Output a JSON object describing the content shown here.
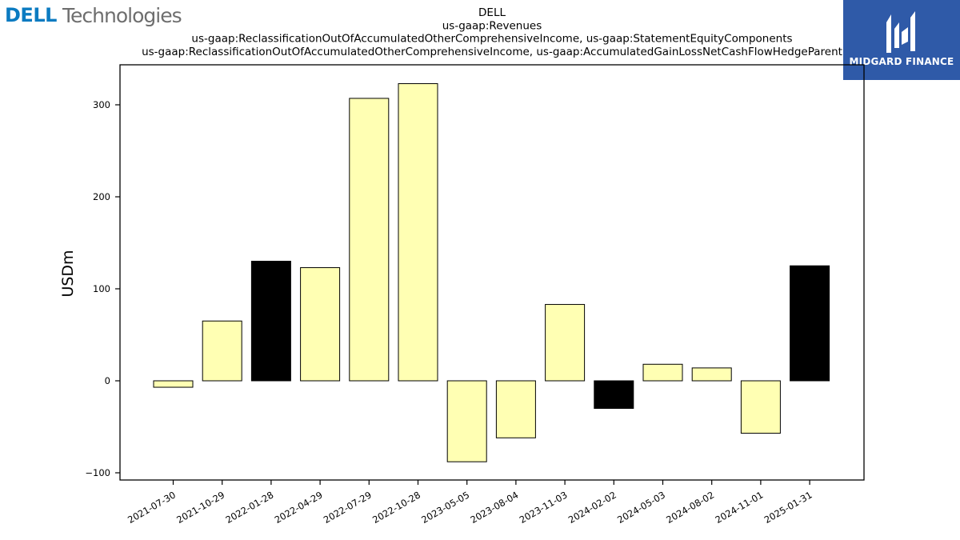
{
  "logos": {
    "dell": {
      "wordmark": "DELL",
      "suffix": "Technologies",
      "color": "#0b7bc1",
      "suffix_color": "#6e6e6e"
    },
    "midgard": {
      "name": "MIDGARD FINANCE",
      "background": "#2f5aa8"
    }
  },
  "chart_data": {
    "type": "bar",
    "title_lines": [
      "DELL",
      "us-gaap:Revenues",
      "us-gaap:ReclassificationOutOfAccumulatedOtherComprehensiveIncome, us-gaap:StatementEquityComponents",
      "us-gaap:ReclassificationOutOfAccumulatedOtherComprehensiveIncome, us-gaap:AccumulatedGainLossNetCashFlowHedgeParent"
    ],
    "ylabel": "USDm",
    "xlabel": "",
    "ylim": [
      -110,
      345
    ],
    "yticks": [
      -100,
      0,
      100,
      200,
      300
    ],
    "categories": [
      "2021-07-30",
      "2021-10-29",
      "2022-01-28",
      "2022-04-29",
      "2022-07-29",
      "2022-10-28",
      "2023-05-05",
      "2023-08-04",
      "2023-11-03",
      "2024-02-02",
      "2024-05-03",
      "2024-08-02",
      "2024-11-01",
      "2025-01-31"
    ],
    "values": [
      -7,
      65,
      130,
      123,
      307,
      323,
      -88,
      -62,
      83,
      -30,
      18,
      14,
      -57,
      125
    ],
    "bar_colors": [
      "#ffffb3",
      "#ffffb3",
      "#000000",
      "#ffffb3",
      "#ffffb3",
      "#ffffb3",
      "#ffffb3",
      "#ffffb3",
      "#ffffb3",
      "#000000",
      "#ffffb3",
      "#ffffb3",
      "#ffffb3",
      "#000000"
    ],
    "grid": false,
    "legend": "none"
  }
}
